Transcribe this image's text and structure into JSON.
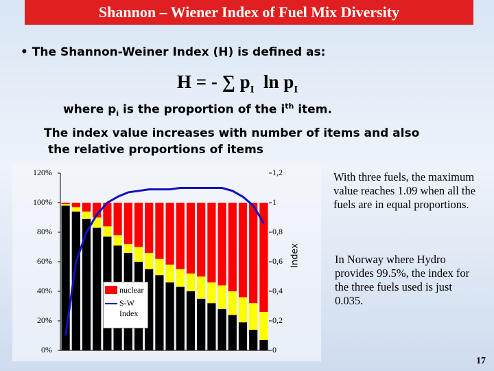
{
  "header": {
    "title": "Shannon – Wiener Index of Fuel Mix Diversity"
  },
  "bullet": "The Shannon-Weiner Index (H) is defined as:",
  "formula": {
    "lhs": "H =  -",
    "sigma": "∑",
    "term1": "p",
    "sub1": "I",
    "term2": "ln p",
    "sub2": "I"
  },
  "definition": {
    "a": "where p",
    "b": "i",
    "c": "  is the proportion of the  i",
    "d": "th",
    "e": " item."
  },
  "statement": [
    "The index value increases with number of items and also",
    "the relative proportions of items"
  ],
  "notes": [
    "With three fuels, the maximum value reaches 1.09 when all the fuels are in equal proportions.",
    "In Norway where Hydro provides 99.5%, the index for the three fuels used is just 0.035."
  ],
  "page_number": "17",
  "chart_data": {
    "type": "bar",
    "categories": [
      null,
      null,
      null,
      null,
      null,
      null,
      null,
      null,
      null,
      null,
      null,
      null,
      null,
      null,
      null,
      null,
      null,
      null,
      null,
      null
    ],
    "stacked": true,
    "series": [
      {
        "color": "#000000",
        "values": [
          98,
          94,
          89,
          83,
          77,
          71,
          66,
          60,
          55,
          51,
          46,
          43,
          40,
          35,
          32,
          28,
          24,
          19,
          14,
          7
        ]
      },
      {
        "color": "#ffff00",
        "values": [
          1,
          3,
          5,
          7,
          7,
          7,
          6,
          10,
          11,
          11,
          12,
          12,
          12,
          15,
          14,
          16,
          16,
          17,
          18,
          19
        ]
      },
      {
        "name": "nuclear",
        "color": "#ff0000",
        "values": [
          1,
          3,
          6,
          10,
          16,
          22,
          28,
          30,
          34,
          38,
          42,
          45,
          48,
          50,
          54,
          56,
          60,
          64,
          68,
          74
        ]
      },
      {
        "name": "S-W Index",
        "type": "line",
        "axis": "y2",
        "color": "#1010c0",
        "values": [
          0.1,
          0.6,
          0.8,
          0.92,
          1.0,
          1.04,
          1.07,
          1.08,
          1.09,
          1.09,
          1.09,
          1.1,
          1.1,
          1.1,
          1.1,
          1.1,
          1.08,
          1.04,
          0.98,
          0.86
        ]
      }
    ],
    "ylim": [
      0,
      120
    ],
    "yticks": [
      {
        "value": 0,
        "label": "0%"
      },
      {
        "value": 20,
        "label": "20%"
      },
      {
        "value": 40,
        "label": "40%"
      },
      {
        "value": 60,
        "label": "60%"
      },
      {
        "value": 80,
        "label": "80%"
      },
      {
        "value": 100,
        "label": "100%"
      },
      {
        "value": 120,
        "label": "120%"
      }
    ],
    "y2lim": [
      0,
      1.2
    ],
    "y2ticks": [
      0,
      {
        "value": 0.2,
        "label": "0,2"
      },
      {
        "value": 0.4,
        "label": "0,4"
      },
      {
        "value": 0.6,
        "label": "0,6"
      },
      {
        "value": 0.8,
        "label": "0,8"
      },
      1,
      {
        "value": 1.2,
        "label": "1,2"
      }
    ],
    "y2label": "Index"
  }
}
